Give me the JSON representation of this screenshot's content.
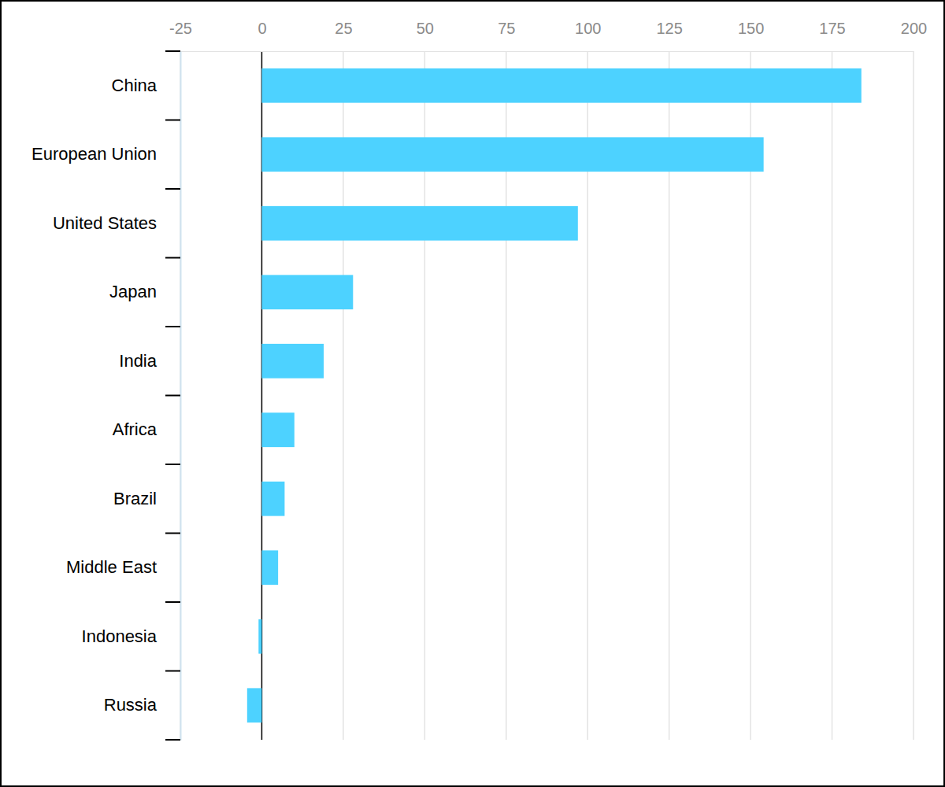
{
  "chart_data": {
    "type": "bar",
    "orientation": "horizontal",
    "categories": [
      "China",
      "European Union",
      "United States",
      "Japan",
      "India",
      "Africa",
      "Brazil",
      "Middle East",
      "Indonesia",
      "Russia"
    ],
    "values": [
      184,
      154,
      97,
      28,
      19,
      10,
      7,
      5,
      -1,
      -4.5
    ],
    "color": "#4dd2ff",
    "xlim": [
      -25,
      200
    ],
    "xticks": [
      -25,
      0,
      25,
      50,
      75,
      100,
      125,
      150,
      175,
      200
    ],
    "grid": true
  }
}
